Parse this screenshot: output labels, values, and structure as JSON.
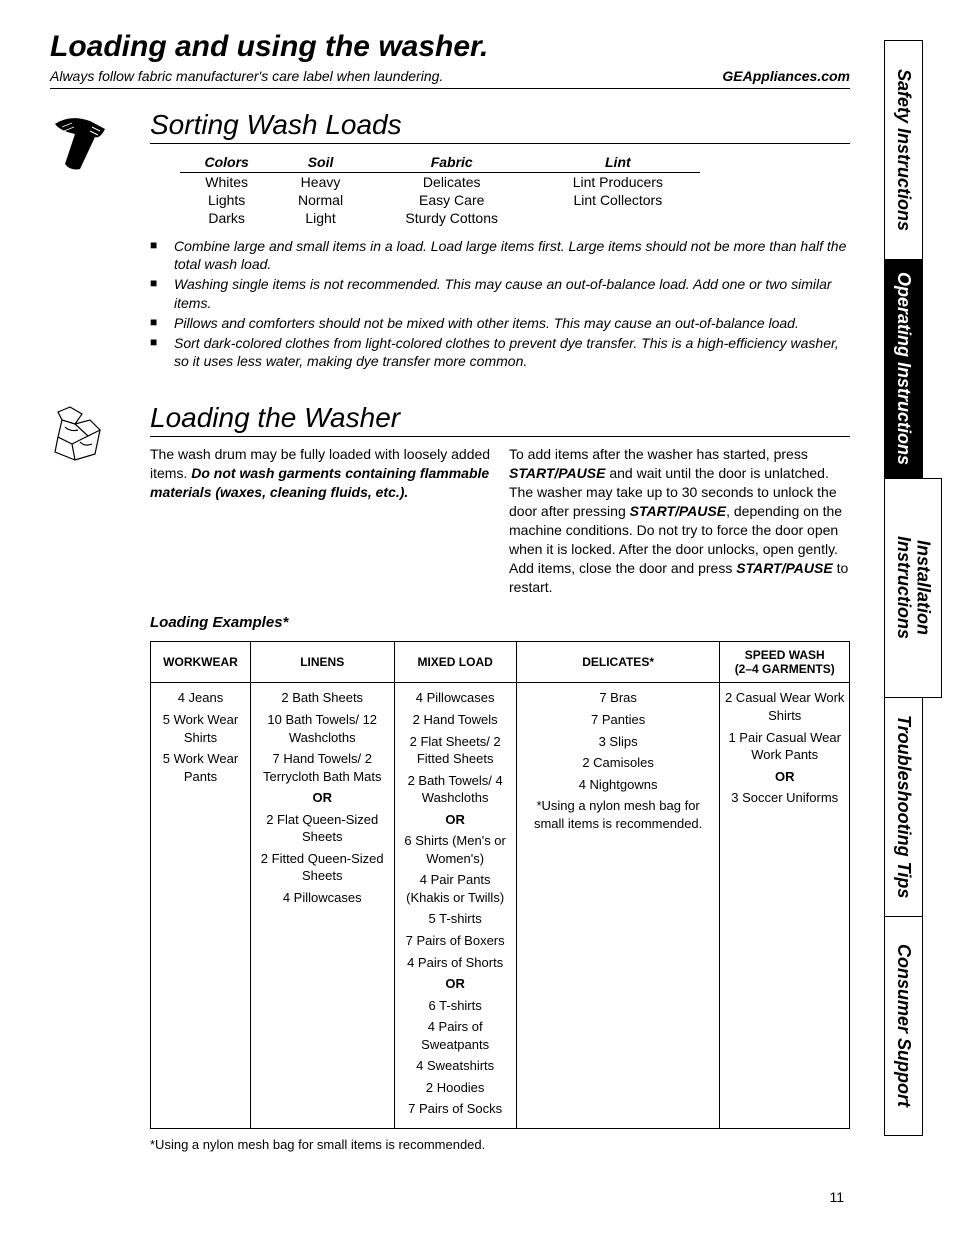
{
  "page": {
    "title": "Loading and using the washer.",
    "subtitle": "Always follow fabric manufacturer's care label when laundering.",
    "site": "GEAppliances.com",
    "number": "11"
  },
  "tabs": [
    {
      "label": "Safety Instructions",
      "active": false
    },
    {
      "label": "Operating Instructions",
      "active": true
    },
    {
      "label": "Installation\nInstructions",
      "active": false
    },
    {
      "label": "Troubleshooting Tips",
      "active": false
    },
    {
      "label": "Consumer Support",
      "active": false
    }
  ],
  "sorting": {
    "title": "Sorting Wash Loads",
    "headers": [
      "Colors",
      "Soil",
      "Fabric",
      "Lint"
    ],
    "rows": [
      [
        "Whites",
        "Heavy",
        "Delicates",
        "Lint Producers"
      ],
      [
        "Lights",
        "Normal",
        "Easy Care",
        "Lint Collectors"
      ],
      [
        "Darks",
        "Light",
        "Sturdy Cottons",
        ""
      ]
    ],
    "bullets": [
      "Combine large and small items in a load. Load large items first. Large items should not be more than half the total wash load.",
      "Washing single items is not recommended. This may cause an out-of-balance load. Add one or two similar items.",
      "Pillows and comforters should not be mixed with other items. This may cause an out-of-balance load.",
      "Sort dark-colored clothes from light-colored clothes to prevent dye transfer. This is a high-efficiency washer, so it uses less water, making dye transfer more common."
    ]
  },
  "loading": {
    "title": "Loading the Washer",
    "col1_pre": "The wash drum may be fully loaded with loosely added items. ",
    "col1_bold": "Do not wash garments containing flammable materials (waxes, cleaning fluids, etc.).",
    "col2_a": "To add items after the washer has started, press ",
    "sp": "START/PAUSE",
    "col2_b": " and wait until the door is unlatched. The washer may take up to 30 seconds to unlock the door after pressing ",
    "col2_c": ", depending on the machine conditions. Do not try to force the door open when it is locked. After the door unlocks, open gently. Add items, close the door and press ",
    "col2_d": " to restart.",
    "examples_title": "Loading Examples*",
    "headers": [
      "WORKWEAR",
      "LINENS",
      "MIXED LOAD",
      "DELICATES*",
      "SPEED WASH\n(2–4 GARMENTS)"
    ],
    "workwear": [
      "4 Jeans",
      "5 Work Wear Shirts",
      "5 Work Wear Pants"
    ],
    "linens_a": [
      "2 Bath Sheets",
      "10 Bath Towels/ 12 Washcloths",
      "7 Hand Towels/ 2 Terrycloth Bath Mats"
    ],
    "linens_b": [
      "2 Flat Queen-Sized Sheets",
      "2 Fitted Queen-Sized Sheets",
      "4 Pillowcases"
    ],
    "mixed_a": [
      "4 Pillowcases",
      "2 Hand Towels",
      "2 Flat Sheets/ 2 Fitted Sheets",
      "2 Bath Towels/ 4 Washcloths"
    ],
    "mixed_b": [
      "6 Shirts (Men's or Women's)",
      "4 Pair Pants (Khakis or Twills)",
      "5 T-shirts",
      "7 Pairs of Boxers",
      "4 Pairs of Shorts"
    ],
    "mixed_c": [
      "6 T-shirts",
      "4 Pairs of Sweatpants",
      "4 Sweatshirts",
      "2 Hoodies",
      "7 Pairs of Socks"
    ],
    "delicates": [
      "7 Bras",
      "7 Panties",
      "3 Slips",
      "2 Camisoles",
      "4 Nightgowns"
    ],
    "delicates_note": "*Using a nylon mesh bag for small items is recommended.",
    "speed_a": [
      "2 Casual Wear Work Shirts",
      "1 Pair Casual Wear Work Pants"
    ],
    "speed_b": [
      "3 Soccer Uniforms"
    ],
    "or": "OR",
    "footnote": "*Using a nylon mesh bag for small items is recommended."
  }
}
